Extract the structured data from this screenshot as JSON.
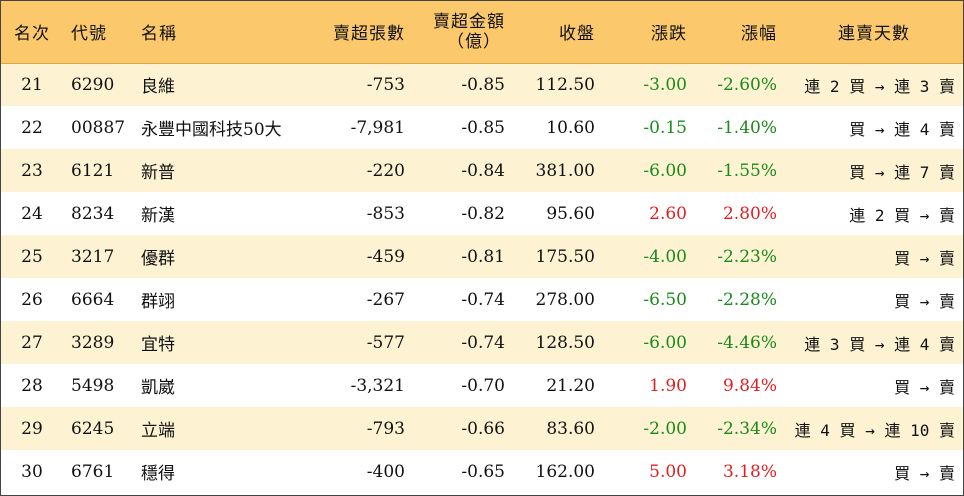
{
  "headers": {
    "rank": "名次",
    "code": "代號",
    "name": "名稱",
    "sell_lots": "賣超張數",
    "sell_amount_line1": "賣超金額",
    "sell_amount_line2": "（億）",
    "close": "收盤",
    "change": "漲跌",
    "pct": "漲幅",
    "streak": "連賣天數"
  },
  "rows": [
    {
      "rank": "21",
      "code": "6290",
      "name": "良維",
      "lots": "-753",
      "amount": "-0.85",
      "close": "112.50",
      "change": "-3.00",
      "pct": "-2.60%",
      "streak": "連 2 買 → 連 3 賣",
      "dir": "neg"
    },
    {
      "rank": "22",
      "code": "00887",
      "name": "永豐中國科技50大",
      "lots": "-7,981",
      "amount": "-0.85",
      "close": "10.60",
      "change": "-0.15",
      "pct": "-1.40%",
      "streak": "買 → 連 4 賣",
      "dir": "neg"
    },
    {
      "rank": "23",
      "code": "6121",
      "name": "新普",
      "lots": "-220",
      "amount": "-0.84",
      "close": "381.00",
      "change": "-6.00",
      "pct": "-1.55%",
      "streak": "買 → 連 7 賣",
      "dir": "neg"
    },
    {
      "rank": "24",
      "code": "8234",
      "name": "新漢",
      "lots": "-853",
      "amount": "-0.82",
      "close": "95.60",
      "change": "2.60",
      "pct": "2.80%",
      "streak": "連 2 買 → 賣",
      "dir": "pos"
    },
    {
      "rank": "25",
      "code": "3217",
      "name": "優群",
      "lots": "-459",
      "amount": "-0.81",
      "close": "175.50",
      "change": "-4.00",
      "pct": "-2.23%",
      "streak": "買 → 賣",
      "dir": "neg"
    },
    {
      "rank": "26",
      "code": "6664",
      "name": "群翊",
      "lots": "-267",
      "amount": "-0.74",
      "close": "278.00",
      "change": "-6.50",
      "pct": "-2.28%",
      "streak": "買 → 賣",
      "dir": "neg"
    },
    {
      "rank": "27",
      "code": "3289",
      "name": "宜特",
      "lots": "-577",
      "amount": "-0.74",
      "close": "128.50",
      "change": "-6.00",
      "pct": "-4.46%",
      "streak": "連 3 買 → 連 4 賣",
      "dir": "neg"
    },
    {
      "rank": "28",
      "code": "5498",
      "name": "凱崴",
      "lots": "-3,321",
      "amount": "-0.70",
      "close": "21.20",
      "change": "1.90",
      "pct": "9.84%",
      "streak": "買 → 賣",
      "dir": "pos"
    },
    {
      "rank": "29",
      "code": "6245",
      "name": "立端",
      "lots": "-793",
      "amount": "-0.66",
      "close": "83.60",
      "change": "-2.00",
      "pct": "-2.34%",
      "streak": "連 4 買 → 連 10 賣",
      "dir": "neg"
    },
    {
      "rank": "30",
      "code": "6761",
      "name": "穩得",
      "lots": "-400",
      "amount": "-0.65",
      "close": "162.00",
      "change": "5.00",
      "pct": "3.18%",
      "streak": "買 → 賣",
      "dir": "pos"
    }
  ],
  "colors": {
    "header_bg": "#fbc96c",
    "odd_row_bg": "#fdf3d3",
    "up": "#e02020",
    "down": "#1a8a1a"
  }
}
